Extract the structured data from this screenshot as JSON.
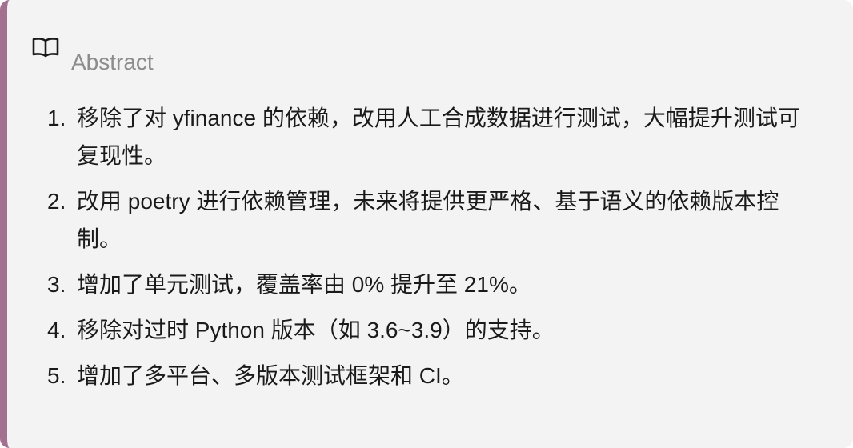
{
  "callout": {
    "icon": "open-book-icon",
    "accent_color": "#a3708f",
    "title": "Abstract",
    "items": [
      {
        "number": "1.",
        "text": "移除了对 yfinance 的依赖，改用人工合成数据进行测试，大幅提升测试可复现性。"
      },
      {
        "number": "2.",
        "text": "改用 poetry 进行依赖管理，未来将提供更严格、基于语义的依赖版本控制。"
      },
      {
        "number": "3.",
        "text": "增加了单元测试，覆盖率由 0% 提升至 21%。"
      },
      {
        "number": "4.",
        "text": "移除对过时 Python 版本（如 3.6~3.9）的支持。"
      },
      {
        "number": "5.",
        "text": "增加了多平台、多版本测试框架和 CI。"
      }
    ]
  }
}
